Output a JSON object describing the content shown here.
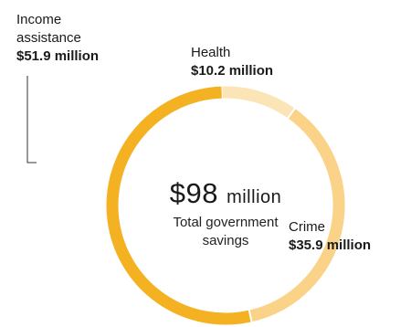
{
  "chart_data": {
    "type": "pie",
    "style": "donut",
    "center_value": "$98",
    "center_unit": "million",
    "center_caption": "Total government savings",
    "slices": [
      {
        "name": "Income assistance",
        "value_label": "$51.9 million",
        "value": 51.9,
        "color": "#F4B223"
      },
      {
        "name": "Health",
        "value_label": "$10.2 million",
        "value": 10.2,
        "color": "#FBE4B6"
      },
      {
        "name": "Crime",
        "value_label": "$35.9 million",
        "value": 35.9,
        "color": "#FAD288"
      }
    ]
  },
  "colors": {
    "leader_line": "#333333",
    "gap": "#ffffff"
  }
}
